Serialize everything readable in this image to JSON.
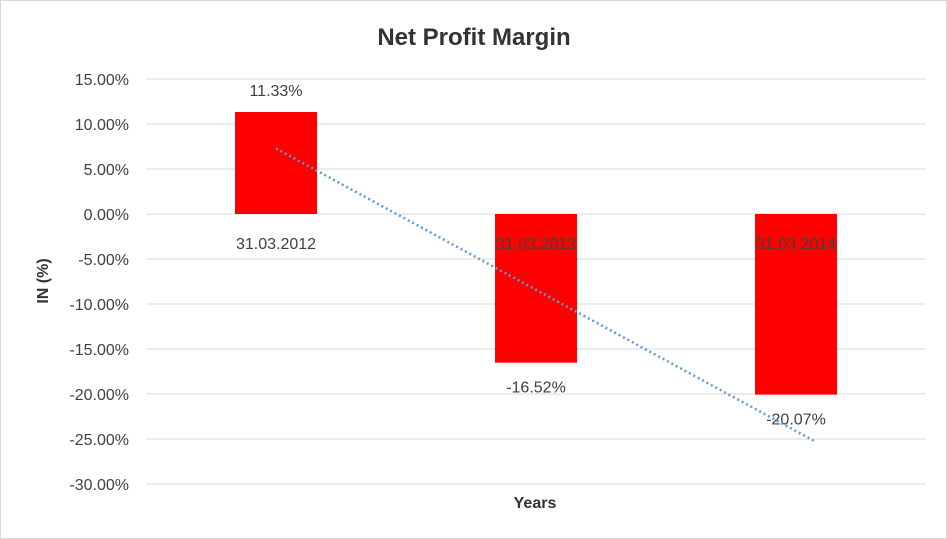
{
  "chart_data": {
    "type": "bar",
    "title": "Net Profit Margin",
    "xlabel": "Years",
    "ylabel": "IN (%)",
    "categories": [
      "31.03.2012",
      "31.03.2013",
      "31.03.2014"
    ],
    "values": [
      11.33,
      -16.52,
      -20.07
    ],
    "data_labels": [
      "11.33%",
      "-16.52%",
      "-20.07%"
    ],
    "ylim": [
      -30,
      15
    ],
    "ytick_step": 5,
    "yticks": [
      "15.00%",
      "10.00%",
      "5.00%",
      "0.00%",
      "-5.00%",
      "-10.00%",
      "-15.00%",
      "-20.00%",
      "-25.00%",
      "-30.00%"
    ],
    "grid": true,
    "legend": "none",
    "trendline": {
      "type": "linear",
      "style": "dotted",
      "color": "#5b9bd5"
    },
    "bar_color": "#ff0000"
  }
}
